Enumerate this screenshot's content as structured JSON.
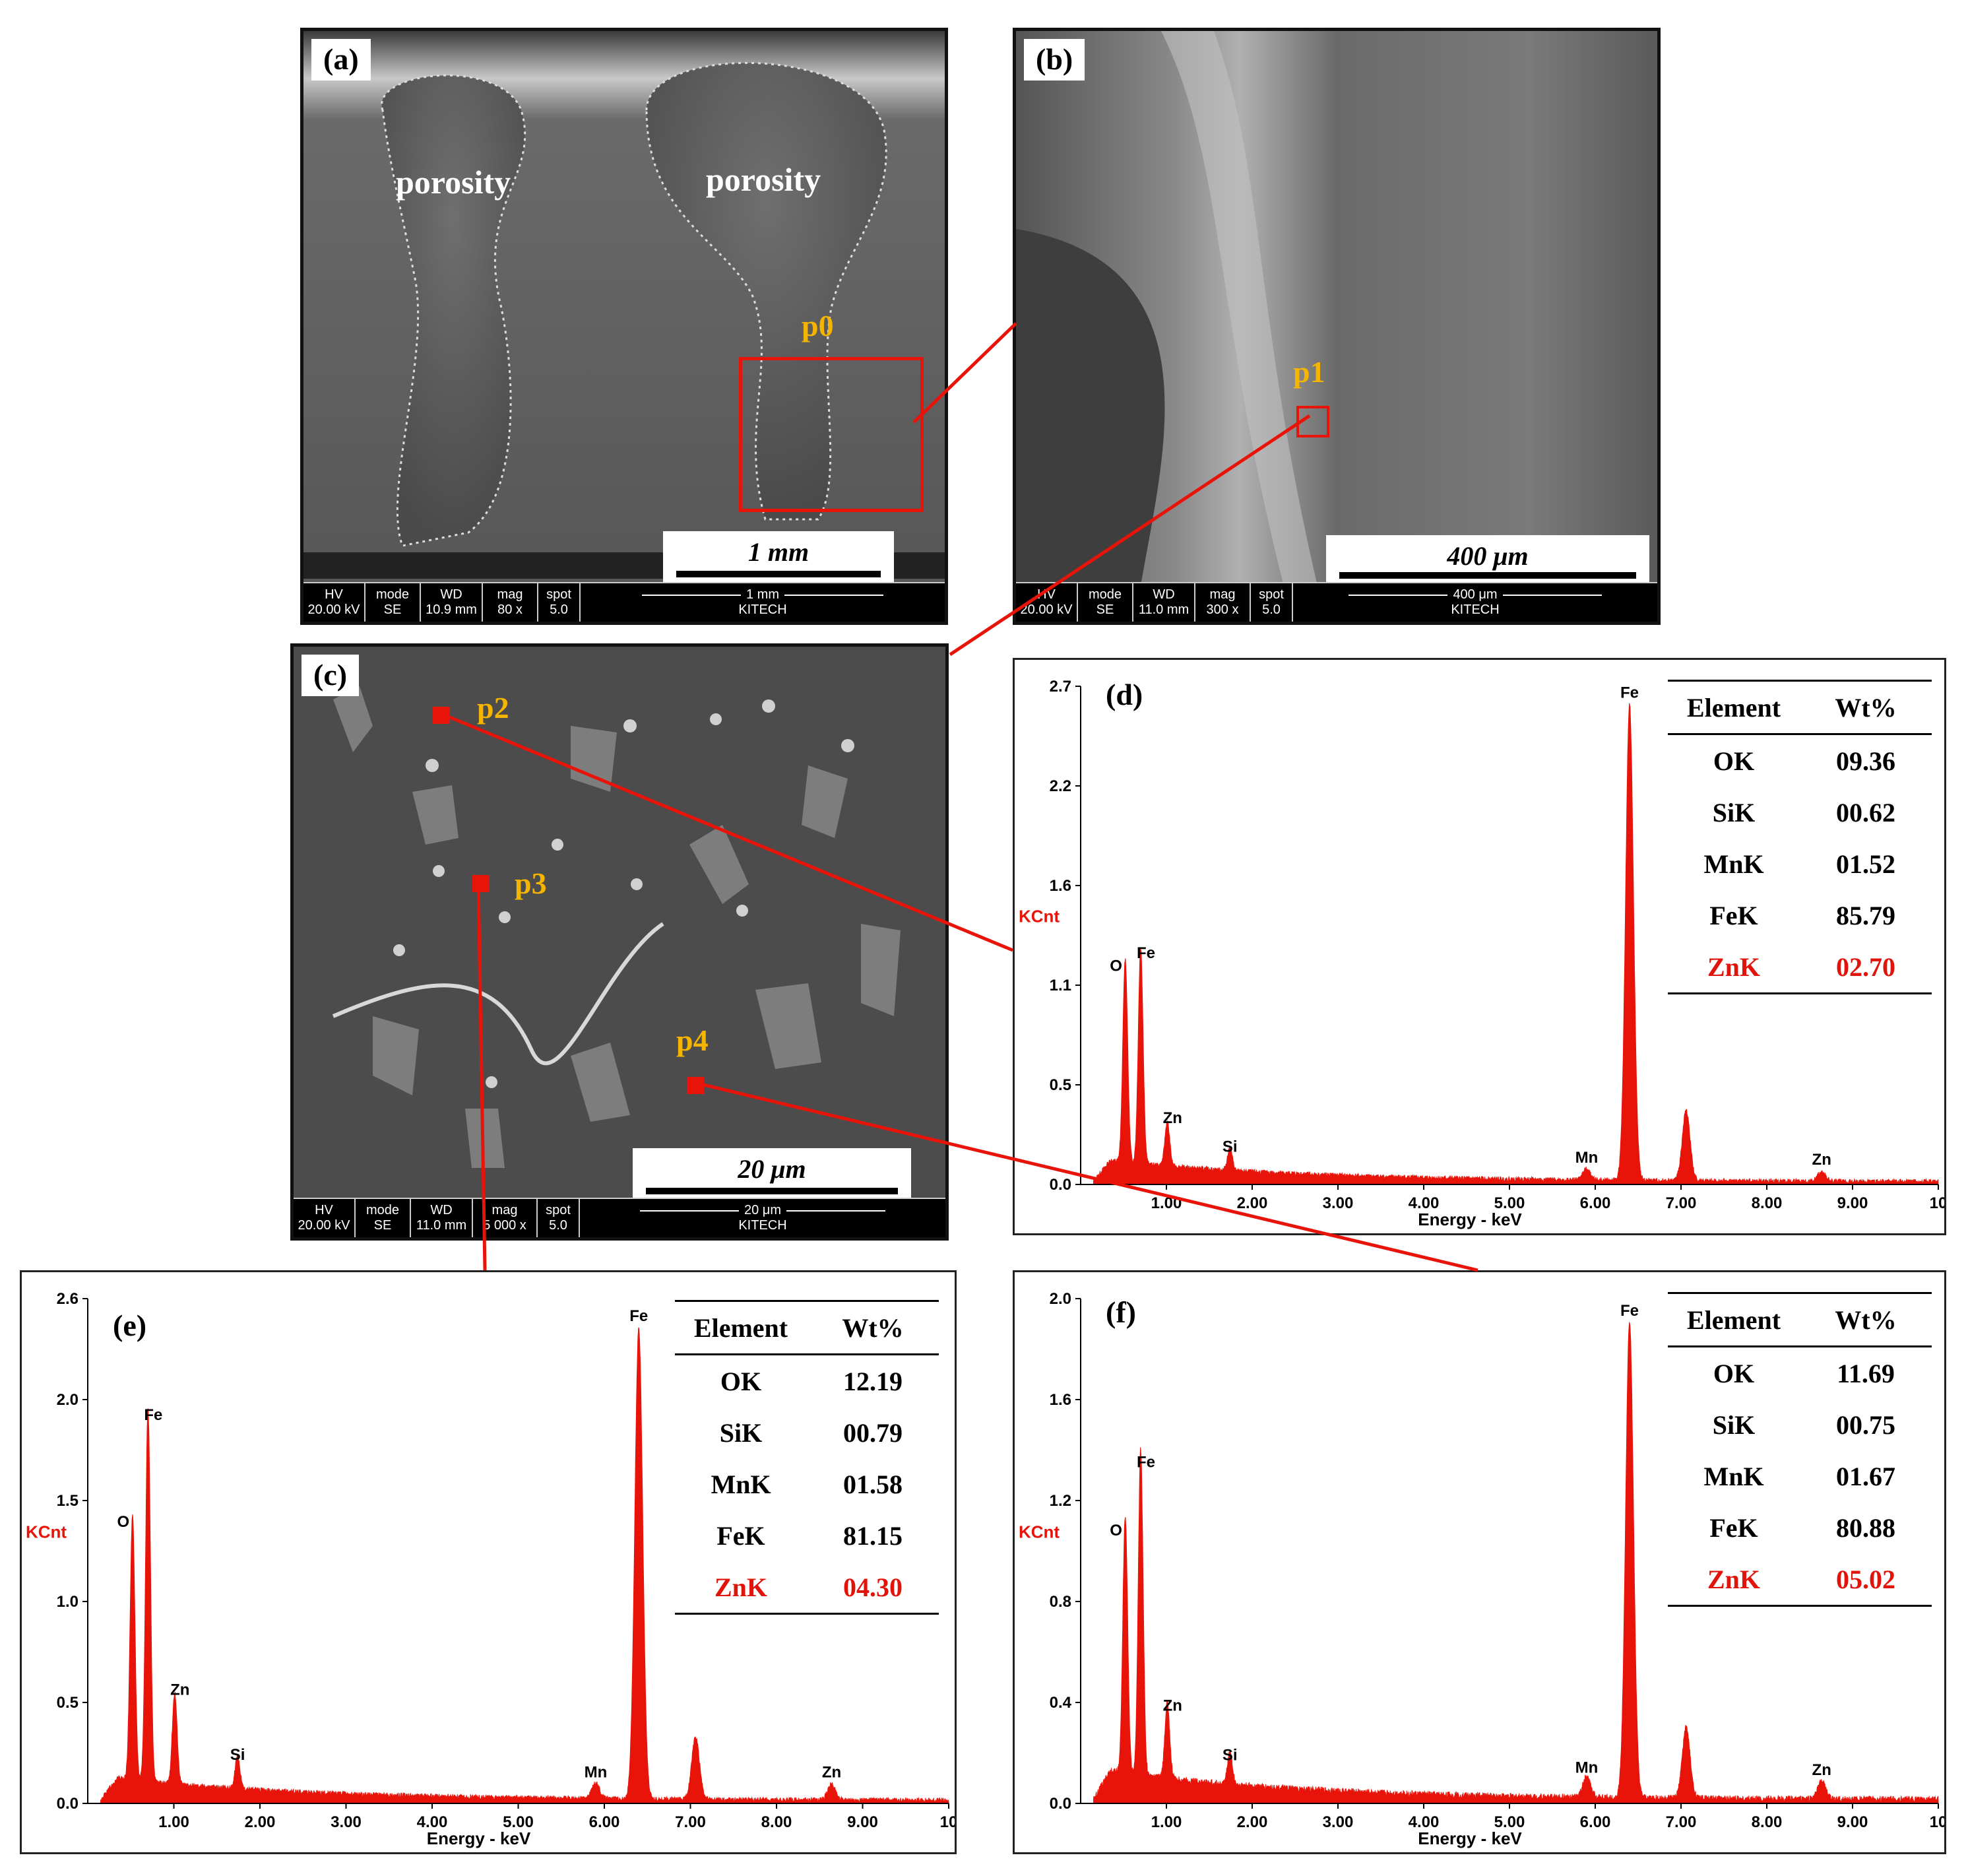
{
  "colors": {
    "spectrum": "#e8140a",
    "marker": "#e8140a",
    "annotation": "#f5b400",
    "highlight": "#e0140a"
  },
  "sem_panels": [
    {
      "id": "a",
      "label": "(a)",
      "scale": "1 mm",
      "porosity": [
        "porosity",
        "porosity"
      ],
      "markers": [
        "p0"
      ],
      "info": {
        "hv_h": "HV",
        "hv": "20.00 kV",
        "mode_h": "mode",
        "mode": "SE",
        "wd_h": "WD",
        "wd": "10.9 mm",
        "mag_h": "mag",
        "mag": "80 x",
        "spot_h": "spot",
        "spot": "5.0",
        "bar": "1 mm",
        "org": "KITECH"
      }
    },
    {
      "id": "b",
      "label": "(b)",
      "scale": "400 μm",
      "markers": [
        "p1"
      ],
      "info": {
        "hv_h": "HV",
        "hv": "20.00 kV",
        "mode_h": "mode",
        "mode": "SE",
        "wd_h": "WD",
        "wd": "11.0 mm",
        "mag_h": "mag",
        "mag": "300 x",
        "spot_h": "spot",
        "spot": "5.0",
        "bar": "400 μm",
        "org": "KITECH"
      }
    },
    {
      "id": "c",
      "label": "(c)",
      "scale": "20 μm",
      "markers": [
        "p2",
        "p3",
        "p4"
      ],
      "info": {
        "hv_h": "HV",
        "hv": "20.00 kV",
        "mode_h": "mode",
        "mode": "SE",
        "wd_h": "WD",
        "wd": "11.0 mm",
        "mag_h": "mag",
        "mag": "5 000 x",
        "spot_h": "spot",
        "spot": "5.0",
        "bar": "20 μm",
        "org": "KITECH"
      }
    }
  ],
  "chart_data": [
    {
      "type": "line",
      "panel": "(d)",
      "xlabel": "Energy - keV",
      "ylabel": "KCnt",
      "xlim": [
        0,
        10
      ],
      "ylim": [
        0,
        2.7
      ],
      "xticks": [
        "1.00",
        "2.00",
        "3.00",
        "4.00",
        "5.00",
        "6.00",
        "7.00",
        "8.00",
        "9.00",
        "10"
      ],
      "yticks": [
        "0.0",
        "0.5",
        "1.1",
        "1.6",
        "2.2",
        "2.7"
      ],
      "peaks": [
        {
          "label": "O",
          "x": 0.52,
          "y": 1.1
        },
        {
          "label": "Fe",
          "x": 0.7,
          "y": 1.17
        },
        {
          "label": "Zn",
          "x": 1.01,
          "y": 0.24
        },
        {
          "label": "Si",
          "x": 1.74,
          "y": 0.12
        },
        {
          "label": "Mn",
          "x": 5.9,
          "y": 0.06
        },
        {
          "label": "Fe",
          "x": 6.4,
          "y": 2.58
        },
        {
          "label": "",
          "x": 7.06,
          "y": 0.38
        },
        {
          "label": "Zn",
          "x": 8.64,
          "y": 0.05
        }
      ],
      "table": {
        "headers": [
          "Element",
          "Wt%"
        ],
        "rows": [
          [
            "OK",
            "09.36"
          ],
          [
            "SiK",
            "00.62"
          ],
          [
            "MnK",
            "01.52"
          ],
          [
            "FeK",
            "85.79"
          ],
          [
            "ZnK",
            "02.70"
          ]
        ]
      }
    },
    {
      "type": "line",
      "panel": "(e)",
      "xlabel": "Energy - keV",
      "ylabel": "KCnt",
      "xlim": [
        0,
        10
      ],
      "ylim": [
        0,
        2.6
      ],
      "xticks": [
        "1.00",
        "2.00",
        "3.00",
        "4.00",
        "5.00",
        "6.00",
        "7.00",
        "8.00",
        "9.00",
        "10"
      ],
      "yticks": [
        "0.0",
        "0.5",
        "1.0",
        "1.5",
        "2.0",
        "2.6"
      ],
      "peaks": [
        {
          "label": "O",
          "x": 0.52,
          "y": 1.37
        },
        {
          "label": "Fe",
          "x": 0.7,
          "y": 1.92
        },
        {
          "label": "Zn",
          "x": 1.01,
          "y": 0.47
        },
        {
          "label": "Si",
          "x": 1.74,
          "y": 0.17
        },
        {
          "label": "Mn",
          "x": 5.9,
          "y": 0.08
        },
        {
          "label": "Fe",
          "x": 6.4,
          "y": 2.43
        },
        {
          "label": "",
          "x": 7.06,
          "y": 0.32
        },
        {
          "label": "Zn",
          "x": 8.64,
          "y": 0.08
        }
      ],
      "table": {
        "headers": [
          "Element",
          "Wt%"
        ],
        "rows": [
          [
            "OK",
            "12.19"
          ],
          [
            "SiK",
            "00.79"
          ],
          [
            "MnK",
            "01.58"
          ],
          [
            "FeK",
            "81.15"
          ],
          [
            "ZnK",
            "04.30"
          ]
        ]
      }
    },
    {
      "type": "line",
      "panel": "(f)",
      "xlabel": "Energy - keV",
      "ylabel": "KCnt",
      "xlim": [
        0,
        10
      ],
      "ylim": [
        0,
        2.0
      ],
      "xticks": [
        "1.00",
        "2.00",
        "3.00",
        "4.00",
        "5.00",
        "6.00",
        "7.00",
        "8.00",
        "9.00",
        "10"
      ],
      "yticks": [
        "0.0",
        "0.4",
        "0.8",
        "1.2",
        "1.6",
        "2.0"
      ],
      "peaks": [
        {
          "label": "O",
          "x": 0.52,
          "y": 1.02
        },
        {
          "label": "Fe",
          "x": 0.7,
          "y": 1.29
        },
        {
          "label": "Zn",
          "x": 1.01,
          "y": 0.3
        },
        {
          "label": "Si",
          "x": 1.74,
          "y": 0.13
        },
        {
          "label": "Mn",
          "x": 5.9,
          "y": 0.08
        },
        {
          "label": "Fe",
          "x": 6.4,
          "y": 1.89
        },
        {
          "label": "",
          "x": 7.06,
          "y": 0.28
        },
        {
          "label": "Zn",
          "x": 8.64,
          "y": 0.07
        }
      ],
      "table": {
        "headers": [
          "Element",
          "Wt%"
        ],
        "rows": [
          [
            "OK",
            "11.69"
          ],
          [
            "SiK",
            "00.75"
          ],
          [
            "MnK",
            "01.67"
          ],
          [
            "FeK",
            "80.88"
          ],
          [
            "ZnK",
            "05.02"
          ]
        ]
      }
    }
  ]
}
